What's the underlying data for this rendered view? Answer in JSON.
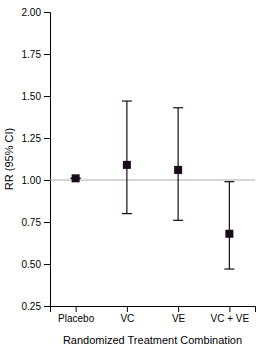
{
  "chart_data": {
    "type": "errorbar",
    "categories": [
      "Placebo",
      "VC",
      "VE",
      "VC + VE"
    ],
    "values": [
      1.01,
      1.09,
      1.06,
      0.68
    ],
    "ci_lower": [
      1.01,
      0.8,
      0.76,
      0.47
    ],
    "ci_upper": [
      1.01,
      1.47,
      1.43,
      0.99
    ],
    "color": "#1a0a1a",
    "marker": "square",
    "reference_line": {
      "value": 1.0,
      "color": "#aaaaaa"
    },
    "x_label": "Randomized Treatment Combination",
    "y_label": "RR (95% CI)",
    "ylim": [
      0.25,
      2.0
    ],
    "yticks": [
      0.25,
      {
        "value": 0.5,
        "label": "0.50"
      },
      0.75,
      {
        "value": 1.0,
        "label": "1.00"
      },
      1.25,
      {
        "value": 1.5,
        "label": "1.50"
      },
      1.75,
      {
        "value": 2.0,
        "label": "2.00"
      }
    ],
    "grid": false
  }
}
